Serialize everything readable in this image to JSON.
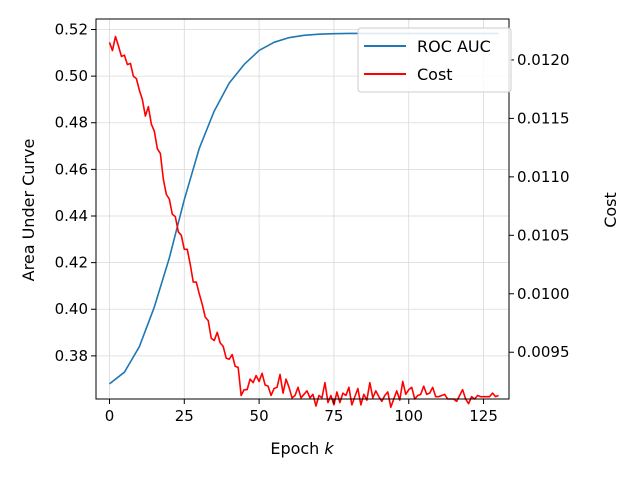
{
  "chart_data": {
    "type": "line",
    "xlabel_text": "Epoch ",
    "xlabel_var": "k",
    "ylabel_left": "Area Under Curve",
    "ylabel_right": "Cost",
    "xlim": [
      -4.5,
      133.5
    ],
    "ylim_left": [
      0.3615,
      0.5245
    ],
    "ylim_right": [
      0.0091,
      0.01235
    ],
    "x_ticks": [
      0,
      25,
      50,
      75,
      100,
      125
    ],
    "y_ticks_left": [
      0.38,
      0.4,
      0.42,
      0.44,
      0.46,
      0.48,
      0.5,
      0.52
    ],
    "y_tick_labels_left": [
      "0.38",
      "0.40",
      "0.42",
      "0.44",
      "0.46",
      "0.48",
      "0.50",
      "0.52"
    ],
    "y_ticks_right": [
      0.0095,
      0.01,
      0.0105,
      0.011,
      0.0115,
      0.012
    ],
    "y_tick_labels_right": [
      "0.0095",
      "0.0100",
      "0.0105",
      "0.0110",
      "0.0115",
      "0.0120"
    ],
    "grid": true,
    "legend_position": "top-right",
    "series": [
      {
        "name": "ROC AUC",
        "axis": "left",
        "color": "#1f77b4",
        "x": [
          0,
          5,
          10,
          15,
          20,
          25,
          30,
          35,
          40,
          45,
          50,
          55,
          60,
          65,
          70,
          75,
          80,
          90,
          100,
          110,
          120,
          130
        ],
        "y": [
          0.368,
          0.373,
          0.384,
          0.401,
          0.422,
          0.447,
          0.469,
          0.485,
          0.497,
          0.505,
          0.511,
          0.5145,
          0.5165,
          0.5175,
          0.518,
          0.5182,
          0.5183,
          0.5183,
          0.5183,
          0.5183,
          0.5183,
          0.5183
        ]
      },
      {
        "name": "Cost",
        "axis": "right",
        "color": "#ff0000",
        "x": [
          0,
          1,
          2,
          3,
          4,
          5,
          6,
          7,
          8,
          9,
          10,
          11,
          12,
          13,
          14,
          15,
          16,
          17,
          18,
          19,
          20,
          21,
          22,
          23,
          24,
          25,
          26,
          27,
          28,
          29,
          30,
          31,
          32,
          33,
          34,
          35,
          36,
          37,
          38,
          39,
          40,
          41,
          42,
          43,
          44,
          45,
          46,
          47,
          48,
          49,
          50,
          51,
          52,
          53,
          54,
          55,
          56,
          57,
          58,
          59,
          60,
          61,
          62,
          63,
          64,
          65,
          66,
          67,
          68,
          69,
          70,
          71,
          72,
          73,
          74,
          75,
          76,
          77,
          78,
          79,
          80,
          81,
          82,
          83,
          84,
          85,
          86,
          87,
          88,
          89,
          90,
          91,
          92,
          93,
          94,
          95,
          96,
          97,
          98,
          99,
          100,
          101,
          102,
          103,
          104,
          105,
          106,
          107,
          108,
          109,
          110,
          111,
          112,
          113,
          114,
          115,
          116,
          117,
          118,
          119,
          120,
          121,
          122,
          123,
          124,
          125,
          126,
          127,
          128,
          129,
          130
        ],
        "y": [
          0.01215,
          0.01208,
          0.0122,
          0.01212,
          0.01203,
          0.01204,
          0.01196,
          0.01197,
          0.01186,
          0.01184,
          0.01174,
          0.01166,
          0.01152,
          0.0116,
          0.01145,
          0.01139,
          0.01124,
          0.0112,
          0.01098,
          0.01085,
          0.01081,
          0.01068,
          0.01066,
          0.01053,
          0.0105,
          0.01038,
          0.01038,
          0.01025,
          0.0101,
          0.0101,
          0.01,
          0.00991,
          0.0098,
          0.00977,
          0.00962,
          0.0096,
          0.00967,
          0.00958,
          0.00955,
          0.00945,
          0.00944,
          0.00948,
          0.00938,
          0.00937,
          0.00913,
          0.00918,
          0.00918,
          0.00927,
          0.00924,
          0.0093,
          0.00925,
          0.00932,
          0.00922,
          0.00921,
          0.00913,
          0.00919,
          0.0092,
          0.00931,
          0.00915,
          0.00927,
          0.0092,
          0.00911,
          0.00913,
          0.0092,
          0.00911,
          0.00914,
          0.00917,
          0.00911,
          0.00914,
          0.00904,
          0.00913,
          0.00911,
          0.00924,
          0.00907,
          0.00913,
          0.00905,
          0.00916,
          0.00907,
          0.00915,
          0.00913,
          0.0092,
          0.00905,
          0.00912,
          0.00919,
          0.00905,
          0.00914,
          0.00909,
          0.00924,
          0.00911,
          0.00917,
          0.00912,
          0.00908,
          0.00913,
          0.00916,
          0.00903,
          0.0091,
          0.00917,
          0.00909,
          0.00925,
          0.00914,
          0.00918,
          0.0092,
          0.0091,
          0.00913,
          0.00914,
          0.00921,
          0.00914,
          0.00915,
          0.0092,
          0.00912,
          0.00912,
          0.00913,
          0.00914,
          0.0091,
          0.0091,
          0.0091,
          0.00908,
          0.00913,
          0.00918,
          0.0091,
          0.00906,
          0.00912,
          0.0091,
          0.00913,
          0.00912,
          0.00912,
          0.00912,
          0.00912,
          0.00915,
          0.00912,
          0.00913
        ]
      }
    ]
  }
}
